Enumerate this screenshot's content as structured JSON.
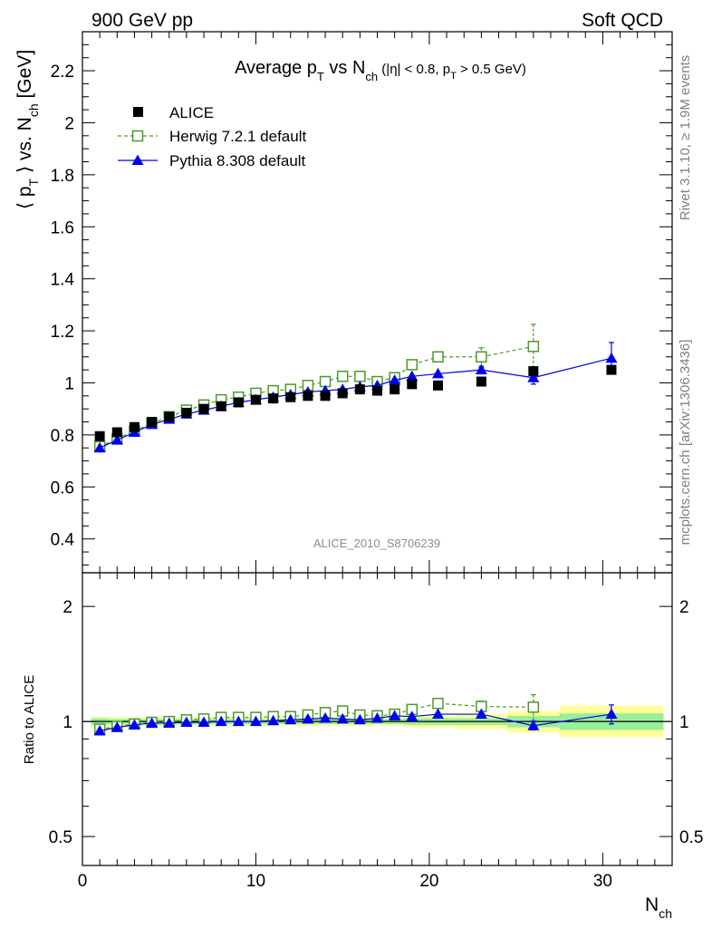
{
  "header": {
    "left": "900 GeV pp",
    "right": "Soft QCD"
  },
  "side_labels": {
    "top": "Rivet 3.1.10, ≥ 1.9M events",
    "bottom": "mcplots.cern.ch [arXiv:1306.3436]"
  },
  "chart_data": [
    {
      "type": "scatter",
      "title": "Average p_T vs N_ch (|η| < 0.8, p_T > 0.5 GeV)",
      "title_parts": {
        "a": "Average p",
        "a_sub": "T",
        "b": " vs N",
        "b_sub": "ch",
        "c": " (|η| < 0.8, p",
        "c_sub": "T",
        "d": " > 0.5 GeV)"
      },
      "ylabel_parts": {
        "a": "⟨ p",
        "a_sub": "T",
        "b": " ⟩ vs. N",
        "b_sub": "ch",
        "c": " [GeV]"
      },
      "xlim": [
        0,
        34
      ],
      "ylim": [
        0.27,
        2.35
      ],
      "yticks": [
        "0.4",
        "0.6",
        "0.8",
        "1",
        "1.2",
        "1.4",
        "1.6",
        "1.8",
        "2",
        "2.2"
      ],
      "watermark": "ALICE_2010_S8706239",
      "legend_position": "top-left",
      "series": [
        {
          "name": "ALICE",
          "marker": "filled-square",
          "color": "#000000",
          "x": [
            1,
            2,
            3,
            4,
            5,
            6,
            7,
            8,
            9,
            10,
            11,
            12,
            13,
            14,
            15,
            16,
            17,
            18,
            19,
            20.5,
            23,
            26,
            30.5
          ],
          "y": [
            0.795,
            0.81,
            0.83,
            0.85,
            0.87,
            0.885,
            0.9,
            0.91,
            0.925,
            0.935,
            0.94,
            0.945,
            0.95,
            0.95,
            0.96,
            0.975,
            0.97,
            0.975,
            0.995,
            0.99,
            1.005,
            1.045,
            1.05
          ]
        },
        {
          "name": "Herwig 7.2.1 default",
          "marker": "open-square",
          "color": "#4c9a2a",
          "dashed": true,
          "x": [
            1,
            2,
            3,
            4,
            5,
            6,
            7,
            8,
            9,
            10,
            11,
            12,
            13,
            14,
            15,
            16,
            17,
            18,
            19,
            20.5,
            23,
            26
          ],
          "y": [
            0.755,
            0.785,
            0.815,
            0.845,
            0.87,
            0.895,
            0.915,
            0.935,
            0.945,
            0.96,
            0.97,
            0.975,
            0.99,
            1.005,
            1.025,
            1.025,
            1.005,
            1.02,
            1.07,
            1.1,
            1.1,
            1.14
          ],
          "yerr": [
            0,
            0,
            0,
            0,
            0,
            0,
            0,
            0,
            0,
            0,
            0,
            0,
            0,
            0,
            0,
            0,
            0,
            0,
            0,
            0.015,
            0.035,
            0.085
          ]
        },
        {
          "name": "Pythia 8.308 default",
          "marker": "filled-triangle",
          "color": "#0000ee",
          "x": [
            1,
            2,
            3,
            4,
            5,
            6,
            7,
            8,
            9,
            10,
            11,
            12,
            13,
            14,
            15,
            16,
            17,
            18,
            19,
            20.5,
            23,
            26,
            30.5
          ],
          "y": [
            0.75,
            0.78,
            0.81,
            0.84,
            0.86,
            0.88,
            0.895,
            0.91,
            0.925,
            0.935,
            0.945,
            0.955,
            0.965,
            0.97,
            0.975,
            0.985,
            0.99,
            1.01,
            1.025,
            1.035,
            1.05,
            1.02,
            1.095
          ],
          "yerr": [
            0,
            0,
            0,
            0,
            0,
            0,
            0,
            0,
            0,
            0,
            0,
            0,
            0,
            0,
            0,
            0,
            0,
            0,
            0,
            0,
            0.01,
            0.025,
            0.06
          ]
        }
      ]
    },
    {
      "type": "scatter",
      "ylabel": "Ratio to ALICE",
      "xlabel_parts": {
        "a": "N",
        "a_sub": "ch"
      },
      "xlim": [
        0,
        34
      ],
      "ylim": [
        0.42,
        2.45
      ],
      "log_y": true,
      "yticks": [
        "0.5",
        "1",
        "2"
      ],
      "xticks": [
        "0",
        "10",
        "20",
        "30"
      ],
      "reference": 1,
      "bands": [
        {
          "x0": 0.5,
          "x1": 1.5,
          "stat": [
            0.98,
            1.02
          ],
          "total": [
            0.97,
            1.03
          ]
        },
        {
          "x0": 1.5,
          "x1": 11.5,
          "stat": [
            0.985,
            1.015
          ],
          "total": [
            0.975,
            1.025
          ]
        },
        {
          "x0": 11.5,
          "x1": 18.5,
          "stat": [
            0.985,
            1.015
          ],
          "total": [
            0.975,
            1.025
          ]
        },
        {
          "x0": 18.5,
          "x1": 21.5,
          "stat": [
            0.98,
            1.02
          ],
          "total": [
            0.965,
            1.035
          ]
        },
        {
          "x0": 21.5,
          "x1": 24.5,
          "stat": [
            0.98,
            1.02
          ],
          "total": [
            0.955,
            1.045
          ]
        },
        {
          "x0": 24.5,
          "x1": 27.5,
          "stat": [
            0.965,
            1.035
          ],
          "total": [
            0.935,
            1.065
          ]
        },
        {
          "x0": 27.5,
          "x1": 33.5,
          "stat": [
            0.95,
            1.05
          ],
          "total": [
            0.91,
            1.1
          ]
        }
      ],
      "series": [
        {
          "name": "Herwig 7.2.1 default",
          "marker": "open-square",
          "color": "#4c9a2a",
          "dashed": true,
          "x": [
            1,
            2,
            3,
            4,
            5,
            6,
            7,
            8,
            9,
            10,
            11,
            12,
            13,
            14,
            15,
            16,
            17,
            18,
            19,
            20.5,
            23,
            26
          ],
          "y": [
            0.955,
            0.97,
            0.985,
            0.995,
            1.0,
            1.01,
            1.015,
            1.025,
            1.025,
            1.025,
            1.03,
            1.03,
            1.04,
            1.055,
            1.065,
            1.04,
            1.035,
            1.045,
            1.075,
            1.115,
            1.095,
            1.09
          ],
          "yerr": [
            0,
            0,
            0,
            0,
            0,
            0,
            0,
            0,
            0,
            0,
            0,
            0,
            0,
            0,
            0,
            0,
            0,
            0,
            0,
            0.015,
            0.035,
            0.085
          ]
        },
        {
          "name": "Pythia 8.308 default",
          "marker": "filled-triangle",
          "color": "#0000ee",
          "x": [
            1,
            2,
            3,
            4,
            5,
            6,
            7,
            8,
            9,
            10,
            11,
            12,
            13,
            14,
            15,
            16,
            17,
            18,
            19,
            20.5,
            23,
            26,
            30.5
          ],
          "y": [
            0.945,
            0.965,
            0.98,
            0.99,
            0.99,
            0.995,
            0.995,
            1.0,
            1.0,
            1.0,
            1.005,
            1.01,
            1.015,
            1.02,
            1.015,
            1.01,
            1.02,
            1.035,
            1.03,
            1.045,
            1.045,
            0.975,
            1.045
          ],
          "yerr": [
            0,
            0,
            0,
            0,
            0,
            0,
            0,
            0,
            0,
            0,
            0,
            0,
            0,
            0,
            0,
            0,
            0,
            0,
            0,
            0,
            0.01,
            0.025,
            0.06
          ]
        }
      ]
    }
  ]
}
